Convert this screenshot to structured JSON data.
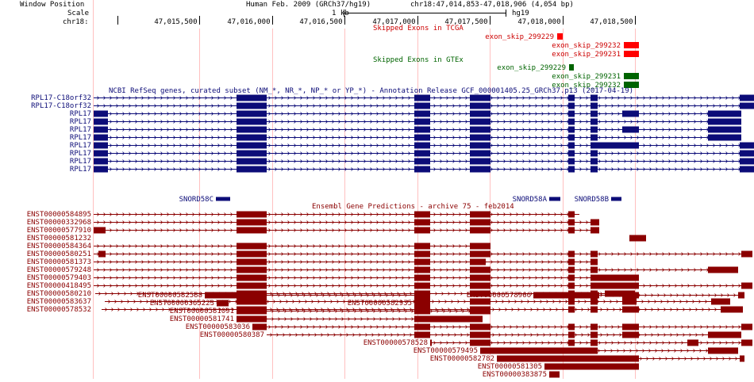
{
  "colors": {
    "refseq": "#0c0c78",
    "ensembl": "#8b0000",
    "tcga": "#ff0000",
    "gtex": "#006400",
    "text": "#000000",
    "redtext": "#cc0000",
    "greentext": "#006400",
    "grid": "#ffc0c0"
  },
  "header": {
    "window_position_label": "Window Position",
    "assembly": "Human Feb. 2009 (GRCh37/hg19)",
    "position": "chr18:47,014,853-47,018,906 (4,054 bp)",
    "scale_label": "Scale",
    "scale_text": "1 kb",
    "scale_db": "hg19",
    "chrom_label": "chr18:",
    "ticks": [
      {
        "label": "47,015,500",
        "pos": 47015500
      },
      {
        "label": "47,016,000",
        "pos": 47016000
      },
      {
        "label": "47,016,500",
        "pos": 47016500
      },
      {
        "label": "47,017,000",
        "pos": 47017000
      },
      {
        "label": "47,017,500",
        "pos": 47017500
      },
      {
        "label": "47,018,000",
        "pos": 47018000
      },
      {
        "label": "47,018,500",
        "pos": 47018500
      }
    ]
  },
  "tracks": {
    "tcga": {
      "title": "Skipped Exons in TCGA",
      "items": [
        {
          "name": "exon_skip_299229",
          "start": 702,
          "end": 709
        },
        {
          "name": "exon_skip_299232",
          "start": 786,
          "end": 805
        },
        {
          "name": "exon_skip_299231",
          "start": 786,
          "end": 805
        }
      ]
    },
    "gtex": {
      "title": "Skipped Exons in GTEx",
      "items": [
        {
          "name": "exon_skip_299229",
          "start": 717,
          "end": 723
        },
        {
          "name": "exon_skip_299231",
          "start": 786,
          "end": 805
        },
        {
          "name": "exon_skip_299232",
          "start": 786,
          "end": 805
        }
      ]
    },
    "refseq": {
      "title": "NCBI RefSeq genes, curated subset (NM_*, NR_*, NP_* or YP_*) - Annotation Release GCF_000001405.25_GRCh37.p13 (2017-04-19)",
      "genes": [
        {
          "name": "RPL17-C18orf32",
          "start": 118,
          "end": 950,
          "blocks": [
            [
              298,
              336
            ],
            [
              522,
              542
            ],
            [
              592,
              618
            ],
            [
              716,
              724
            ],
            [
              744,
              753
            ],
            [
              932,
              950
            ]
          ]
        },
        {
          "name": "RPL17-C18orf32",
          "start": 118,
          "end": 950,
          "blocks": [
            [
              298,
              336
            ],
            [
              522,
              542
            ],
            [
              592,
              618
            ],
            [
              716,
              724
            ],
            [
              744,
              753
            ],
            [
              932,
              950
            ]
          ]
        },
        {
          "name": "RPL17",
          "start": 118,
          "end": 934,
          "blocks": [
            [
              118,
              136
            ],
            [
              298,
              336
            ],
            [
              522,
              542
            ],
            [
              592,
              618
            ],
            [
              716,
              724
            ],
            [
              744,
              753
            ],
            [
              784,
              805
            ],
            [
              892,
              934
            ]
          ]
        },
        {
          "name": "RPL17",
          "start": 118,
          "end": 934,
          "blocks": [
            [
              118,
              136
            ],
            [
              298,
              336
            ],
            [
              522,
              542
            ],
            [
              592,
              618
            ],
            [
              716,
              724
            ],
            [
              744,
              753
            ],
            [
              892,
              934
            ]
          ]
        },
        {
          "name": "RPL17",
          "start": 118,
          "end": 934,
          "blocks": [
            [
              118,
              136
            ],
            [
              298,
              336
            ],
            [
              522,
              542
            ],
            [
              592,
              618
            ],
            [
              716,
              724
            ],
            [
              744,
              753
            ],
            [
              784,
              805
            ],
            [
              892,
              934
            ]
          ]
        },
        {
          "name": "RPL17",
          "start": 118,
          "end": 934,
          "blocks": [
            [
              118,
              136
            ],
            [
              298,
              336
            ],
            [
              522,
              542
            ],
            [
              592,
              618
            ],
            [
              716,
              724
            ],
            [
              744,
              753
            ],
            [
              892,
              934
            ]
          ]
        },
        {
          "name": "RPL17",
          "start": 118,
          "end": 950,
          "blocks": [
            [
              118,
              136
            ],
            [
              298,
              336
            ],
            [
              522,
              542
            ],
            [
              592,
              618
            ],
            [
              716,
              724
            ],
            [
              744,
              753
            ],
            [
              753,
              805
            ],
            [
              932,
              950
            ]
          ]
        },
        {
          "name": "RPL17",
          "start": 118,
          "end": 950,
          "blocks": [
            [
              118,
              136
            ],
            [
              298,
              336
            ],
            [
              522,
              542
            ],
            [
              592,
              618
            ],
            [
              716,
              724
            ],
            [
              744,
              753
            ],
            [
              932,
              950
            ]
          ]
        },
        {
          "name": "RPL17",
          "start": 118,
          "end": 950,
          "blocks": [
            [
              118,
              136
            ],
            [
              298,
              336
            ],
            [
              522,
              542
            ],
            [
              592,
              618
            ],
            [
              716,
              724
            ],
            [
              744,
              753
            ],
            [
              932,
              950
            ]
          ]
        },
        {
          "name": "RPL17",
          "start": 118,
          "end": 950,
          "blocks": [
            [
              118,
              136
            ],
            [
              298,
              336
            ],
            [
              522,
              542
            ],
            [
              592,
              618
            ],
            [
              716,
              724
            ],
            [
              744,
              753
            ],
            [
              932,
              950
            ]
          ]
        }
      ],
      "snornas": [
        {
          "name": "SNORD58C",
          "start": 272,
          "end": 290
        },
        {
          "name": "SNORD58A",
          "start": 692,
          "end": 706
        },
        {
          "name": "SNORD58B",
          "start": 770,
          "end": 783
        }
      ]
    },
    "ensembl": {
      "title": "Ensembl Gene Predictions - archive 75 - feb2014",
      "left_rows": [
        {
          "name": "ENST00000584895",
          "start": 118,
          "end": 730,
          "blocks": [
            [
              298,
              336
            ],
            [
              522,
              542
            ],
            [
              592,
              618
            ],
            [
              716,
              724
            ]
          ]
        },
        {
          "name": "ENST00000332968",
          "start": 118,
          "end": 755,
          "blocks": [
            [
              298,
              336
            ],
            [
              522,
              542
            ],
            [
              592,
              618
            ],
            [
              716,
              724
            ],
            [
              744,
              755
            ]
          ]
        },
        {
          "name": "ENST00000577910",
          "start": 118,
          "end": 755,
          "blocks": [
            [
              118,
              133
            ],
            [
              298,
              336
            ],
            [
              522,
              542
            ],
            [
              592,
              618
            ],
            [
              716,
              724
            ],
            [
              744,
              755
            ]
          ]
        },
        {
          "name": "ENST00000581232",
          "start": 793,
          "end": 814,
          "blocks": [
            [
              793,
              814
            ]
          ]
        },
        {
          "name": "ENST00000584364",
          "start": 118,
          "end": 618,
          "blocks": [
            [
              298,
              336
            ],
            [
              522,
              542
            ],
            [
              592,
              618
            ]
          ]
        },
        {
          "name": "ENST00000580251",
          "start": 118,
          "end": 948,
          "blocks": [
            [
              124,
              133
            ],
            [
              298,
              336
            ],
            [
              522,
              542
            ],
            [
              592,
              618
            ],
            [
              716,
              724
            ],
            [
              744,
              753
            ],
            [
              934,
              948
            ]
          ]
        },
        {
          "name": "ENST00000581373",
          "start": 118,
          "end": 753,
          "blocks": [
            [
              298,
              336
            ],
            [
              522,
              542
            ],
            [
              592,
              612
            ],
            [
              716,
              724
            ],
            [
              744,
              753
            ]
          ]
        },
        {
          "name": "ENST00000579248",
          "start": 118,
          "end": 930,
          "blocks": [
            [
              298,
              336
            ],
            [
              522,
              542
            ],
            [
              592,
              618
            ],
            [
              716,
              724
            ],
            [
              744,
              753
            ],
            [
              892,
              930
            ]
          ]
        },
        {
          "name": "ENST00000579403",
          "start": 118,
          "end": 805,
          "blocks": [
            [
              298,
              336
            ],
            [
              522,
              542
            ],
            [
              592,
              618
            ],
            [
              716,
              724
            ],
            [
              744,
              753
            ],
            [
              753,
              805
            ]
          ]
        },
        {
          "name": "ENST00000418495",
          "start": 118,
          "end": 948,
          "blocks": [
            [
              298,
              336
            ],
            [
              522,
              542
            ],
            [
              592,
              618
            ],
            [
              716,
              724
            ],
            [
              744,
              753
            ],
            [
              753,
              805
            ],
            [
              934,
              948
            ]
          ]
        },
        {
          "name": "ENST00000580210",
          "start": 120,
          "end": 800,
          "blocks": [
            [
              298,
              336
            ],
            [
              522,
              542
            ],
            [
              592,
              618
            ],
            [
              716,
              724
            ],
            [
              744,
              753
            ],
            [
              762,
              800
            ]
          ]
        },
        {
          "name": "ENST00000583637",
          "start": 132,
          "end": 920,
          "blocks": [
            [
              298,
              336
            ],
            [
              522,
              542
            ],
            [
              592,
              618
            ],
            [
              716,
              724
            ],
            [
              744,
              753
            ],
            [
              784,
              802
            ],
            [
              896,
              920
            ]
          ]
        },
        {
          "name": "ENST00000578532",
          "start": 128,
          "end": 936,
          "blocks": [
            [
              298,
              336
            ],
            [
              522,
              542
            ],
            [
              592,
              618
            ],
            [
              716,
              724
            ],
            [
              744,
              753
            ],
            [
              784,
              805
            ],
            [
              908,
              936
            ]
          ]
        }
      ],
      "packed_rows": [
        [
          {
            "name": "ENST00000582588",
            "start": 258,
            "end": 522,
            "blocks": [
              [
                258,
                336
              ],
              [
                522,
                542
              ]
            ]
          },
          {
            "name": "ENST00000578966",
            "start": 672,
            "end": 938,
            "blocks": [
              [
                672,
                755
              ],
              [
                784,
                805
              ],
              [
                930,
                938
              ]
            ]
          }
        ],
        [
          {
            "name": "ENST00000365223",
            "start": 273,
            "end": 288,
            "blocks": [
              [
                273,
                288
              ]
            ]
          },
          {
            "name": "ENST00000582935",
            "start": 522,
            "end": 542,
            "blocks": [
              [
                522,
                542
              ]
            ]
          }
        ],
        [
          {
            "name": "ENST00000581091",
            "start": 298,
            "end": 618,
            "blocks": [
              [
                298,
                336
              ],
              [
                522,
                542
              ],
              [
                592,
                618
              ]
            ]
          }
        ],
        [
          {
            "name": "ENST00000581741",
            "start": 298,
            "end": 608,
            "blocks": [
              [
                298,
                336
              ],
              [
                522,
                608
              ]
            ]
          }
        ],
        [
          {
            "name": "ENST00000583036",
            "start": 318,
            "end": 948,
            "blocks": [
              [
                318,
                336
              ],
              [
                522,
                542
              ],
              [
                592,
                618
              ],
              [
                716,
                724
              ],
              [
                744,
                753
              ],
              [
                784,
                805
              ],
              [
                934,
                948
              ]
            ]
          }
        ],
        [
          {
            "name": "ENST00000580387",
            "start": 336,
            "end": 934,
            "blocks": [
              [
                522,
                542
              ],
              [
                592,
                618
              ],
              [
                716,
                724
              ],
              [
                744,
                753
              ],
              [
                784,
                805
              ],
              [
                892,
                934
              ]
            ]
          }
        ],
        [
          {
            "name": "ENST00000578528",
            "start": 542,
            "end": 948,
            "blocks": [
              [
                542,
                542
              ],
              [
                592,
                618
              ],
              [
                716,
                724
              ],
              [
                744,
                753
              ],
              [
                866,
                880
              ],
              [
                934,
                948
              ]
            ]
          }
        ],
        [
          {
            "name": "ENST00000579495",
            "start": 605,
            "end": 930,
            "blocks": [
              [
                605,
                753
              ],
              [
                892,
                930
              ]
            ]
          }
        ],
        [
          {
            "name": "ENST00000582782",
            "start": 626,
            "end": 938,
            "blocks": [
              [
                626,
                805
              ],
              [
                932,
                938
              ]
            ]
          }
        ],
        [
          {
            "name": "ENST00000581305",
            "start": 686,
            "end": 805,
            "blocks": [
              [
                686,
                805
              ]
            ]
          }
        ],
        [
          {
            "name": "ENST00000383875",
            "start": 692,
            "end": 705,
            "blocks": [
              [
                692,
                705
              ]
            ]
          }
        ]
      ]
    }
  }
}
